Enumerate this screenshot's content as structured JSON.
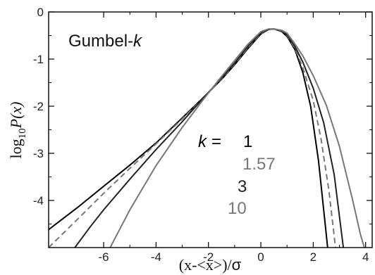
{
  "chart_data": {
    "type": "line",
    "title": "",
    "annotation": {
      "prefix": "Gumbel-",
      "variable": "k"
    },
    "xlabel": {
      "text": "(x-<x>)/",
      "symbol": "σ"
    },
    "ylabel": {
      "prefix": "log",
      "subscript": "10",
      "suffix": "P(x)"
    },
    "xlim": [
      -8.1,
      4.25
    ],
    "ylim": [
      -5,
      0
    ],
    "x_ticks": [
      -6,
      -4,
      -2,
      0,
      2,
      4
    ],
    "y_ticks": [
      0,
      -1,
      -2,
      -3,
      -4
    ],
    "grid": false,
    "legend": {
      "header": "k =",
      "entries": [
        "1",
        "1.57",
        "3",
        "10"
      ],
      "placement": "center-right"
    },
    "series": [
      {
        "name": "1",
        "color": "#000000",
        "dash": "solid",
        "x": [
          -8.1,
          -7.0,
          -6.0,
          -5.0,
          -4.0,
          -3.0,
          -2.2,
          -1.5,
          -1.0,
          -0.5,
          0.0,
          0.3,
          0.5,
          0.8,
          1.0,
          1.3,
          1.6,
          1.9,
          2.2,
          2.4,
          2.55
        ],
        "y": [
          -4.62,
          -4.15,
          -3.7,
          -3.25,
          -2.78,
          -2.25,
          -1.82,
          -1.43,
          -1.12,
          -0.78,
          -0.47,
          -0.37,
          -0.36,
          -0.42,
          -0.52,
          -0.8,
          -1.28,
          -2.0,
          -3.15,
          -4.2,
          -5.0
        ]
      },
      {
        "name": "1.57",
        "color": "#777777",
        "dash": "dashed",
        "x": [
          -8.1,
          -7.0,
          -6.0,
          -5.0,
          -4.0,
          -3.0,
          -2.2,
          -1.5,
          -1.0,
          -0.5,
          0.0,
          0.3,
          0.5,
          0.8,
          1.0,
          1.3,
          1.6,
          2.0,
          2.3,
          2.6,
          2.85
        ],
        "y": [
          -5.0,
          -4.4,
          -3.85,
          -3.32,
          -2.8,
          -2.27,
          -1.83,
          -1.42,
          -1.1,
          -0.76,
          -0.46,
          -0.37,
          -0.36,
          -0.41,
          -0.5,
          -0.77,
          -1.18,
          -1.88,
          -2.7,
          -3.8,
          -5.0
        ]
      },
      {
        "name": "3",
        "color": "#222222",
        "dash": "solid",
        "x": [
          -7.1,
          -6.5,
          -6.0,
          -5.0,
          -4.0,
          -3.0,
          -2.2,
          -1.5,
          -1.0,
          -0.5,
          0.0,
          0.3,
          0.5,
          0.8,
          1.0,
          1.3,
          1.6,
          2.0,
          2.4,
          2.8,
          3.15
        ],
        "y": [
          -5.0,
          -4.55,
          -4.2,
          -3.55,
          -2.92,
          -2.33,
          -1.83,
          -1.4,
          -1.08,
          -0.73,
          -0.44,
          -0.37,
          -0.36,
          -0.4,
          -0.48,
          -0.73,
          -1.06,
          -1.62,
          -2.35,
          -3.45,
          -5.0
        ]
      },
      {
        "name": "10",
        "color": "#777777",
        "dash": "solid",
        "x": [
          -5.75,
          -5.0,
          -4.0,
          -3.0,
          -2.2,
          -1.5,
          -1.0,
          -0.5,
          0.0,
          0.3,
          0.5,
          0.8,
          1.0,
          1.3,
          1.6,
          2.0,
          2.5,
          3.0,
          3.5,
          3.8,
          3.95
        ],
        "y": [
          -5.0,
          -4.2,
          -3.26,
          -2.45,
          -1.86,
          -1.37,
          -1.03,
          -0.69,
          -0.42,
          -0.36,
          -0.36,
          -0.39,
          -0.45,
          -0.68,
          -0.93,
          -1.35,
          -1.98,
          -2.85,
          -3.98,
          -4.72,
          -5.0
        ]
      }
    ]
  }
}
